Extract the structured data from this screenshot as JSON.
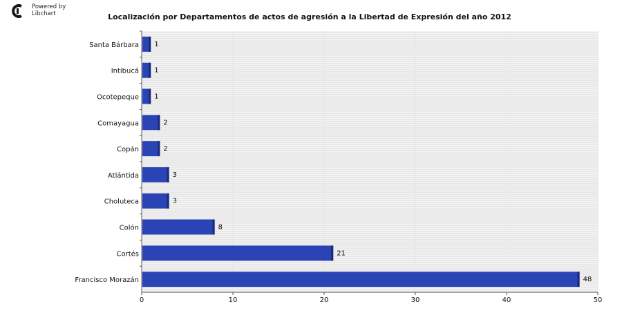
{
  "brand": {
    "line1": "Powered by",
    "line2": "Libchart",
    "icon": "libchart-logo-icon"
  },
  "colors": {
    "bar_fill": "#2a44b5",
    "bar_shadow": "#1a2a78",
    "plot_bg": "#f4f4f4",
    "grid_line": "#dcdcdc",
    "axis": "#555555"
  },
  "chart_data": {
    "type": "bar",
    "orientation": "horizontal",
    "title": "Localización por Departamentos de actos de agresión a la Libertad de Expresión del año 2012",
    "categories": [
      "Santa Bárbara",
      "Intibucá",
      "Ocotepeque",
      "Comayagua",
      "Copán",
      "Atlántida",
      "Choluteca",
      "Colón",
      "Cortés",
      "Francisco Morazán"
    ],
    "values": [
      1,
      1,
      1,
      2,
      2,
      3,
      3,
      8,
      21,
      48
    ],
    "xlim": [
      0,
      50
    ],
    "xticks": [
      0,
      10,
      20,
      30,
      40,
      50
    ],
    "xlabel": "",
    "ylabel": "",
    "grid": true,
    "legend": "none"
  }
}
